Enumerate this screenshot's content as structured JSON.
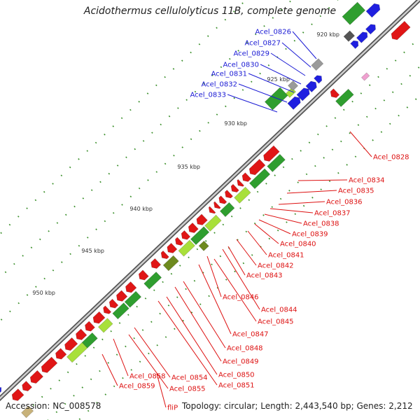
{
  "title": "Acidothermus cellulolyticus 11B, complete genome",
  "footer": {
    "accession": "Accession: NC_008578",
    "summary": "Topology: circular; Length: 2,443,540 bp; Genes: 2,212"
  },
  "scale_labels": [
    "920 kbp",
    "925 kbp",
    "930 kbp",
    "935 kbp",
    "940 kbp",
    "945 kbp",
    "950 kbp"
  ],
  "gene_labels_blue": [
    "Acel_0826",
    "Acel_0827",
    "Acel_0829",
    "Acel_0830",
    "Acel_0831",
    "Acel_0832",
    "Acel_0833"
  ],
  "gene_labels_red": [
    "Acel_0828",
    "Acel_0834",
    "Acel_0835",
    "Acel_0836",
    "Acel_0837",
    "Acel_0838",
    "Acel_0839",
    "Acel_0840",
    "Acel_0841",
    "Acel_0842",
    "Acel_0843",
    "Acel_0846",
    "Acel_0844",
    "Acel_0845",
    "Acel_0847",
    "Acel_0848",
    "Acel_0849",
    "Acel_0850",
    "Acel_0851",
    "Acel_0854",
    "Acel_0855",
    "Acel_0858",
    "Acel_0859",
    "fliP"
  ],
  "colors": {
    "backbone": "#8a8a8a",
    "forward_cds": "#1f1fe0",
    "reverse_cds": "#e01616",
    "feature_green": "#2f9e2f",
    "feature_lightgreen": "#a8e03a",
    "feature_olive": "#6e8a1e",
    "feature_gray": "#9a9a9a",
    "feature_pink": "#f0a0d0",
    "feature_tan": "#c8b27a",
    "tick_green": "#3a8f2a",
    "blue_label": "#1a1ad4",
    "red_label": "#dd1111"
  }
}
